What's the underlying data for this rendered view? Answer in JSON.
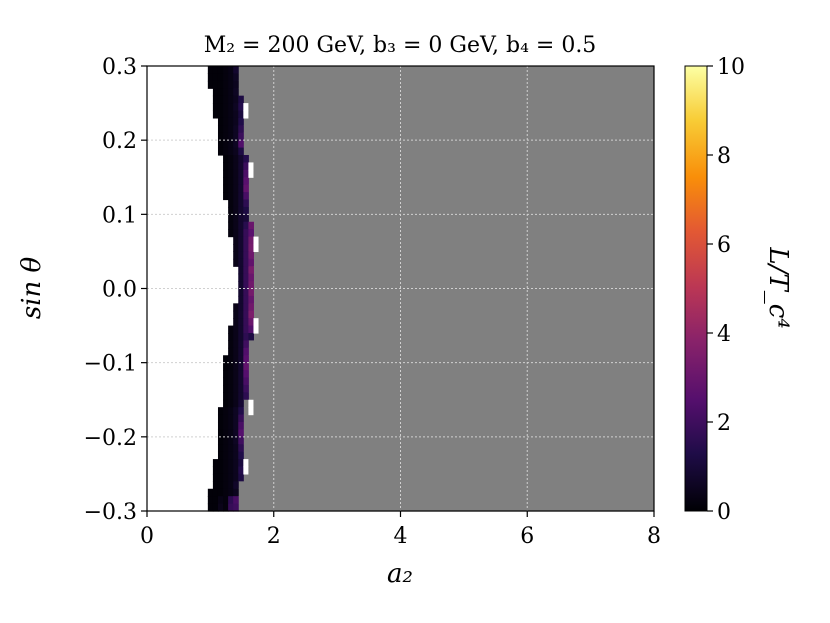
{
  "chart_data": {
    "type": "heatmap",
    "title": "M₂ = 200  GeV,  b₃ = 0  GeV,  b₄ = 0.5",
    "xlabel": "a₂",
    "ylabel": "sin θ",
    "colorbar_label": "L/T_c⁴",
    "xlim": [
      0,
      8
    ],
    "ylim": [
      -0.3,
      0.3
    ],
    "clim": [
      0,
      10
    ],
    "colormap": "inferno",
    "x_ticks": [
      {
        "value": 0,
        "label": "0"
      },
      {
        "value": 2,
        "label": "2"
      },
      {
        "value": 4,
        "label": "4"
      },
      {
        "value": 6,
        "label": "6"
      },
      {
        "value": 8,
        "label": "8"
      }
    ],
    "y_ticks": [
      {
        "value": -0.3,
        "label": "−0.3"
      },
      {
        "value": -0.2,
        "label": "−0.2"
      },
      {
        "value": -0.1,
        "label": "−0.1"
      },
      {
        "value": 0.0,
        "label": "0.0"
      },
      {
        "value": 0.1,
        "label": "0.1"
      },
      {
        "value": 0.2,
        "label": "0.2"
      },
      {
        "value": 0.3,
        "label": "0.3"
      }
    ],
    "colorbar_ticks": [
      {
        "value": 0,
        "label": "0"
      },
      {
        "value": 2,
        "label": "2"
      },
      {
        "value": 4,
        "label": "4"
      },
      {
        "value": 6,
        "label": "6"
      },
      {
        "value": 8,
        "label": "8"
      },
      {
        "value": 10,
        "label": "10"
      }
    ],
    "grid": true,
    "cell_size": {
      "dx": 0.08,
      "dy": 0.01
    },
    "background_region": {
      "x_from": 0,
      "x_to": 8,
      "color": "#ffffff"
    },
    "gray_region_color": "#808080",
    "rows": [
      {
        "y": 0.295,
        "x_start": 0.96,
        "x_gray": 1.44,
        "values": [
          0.1,
          0.1,
          0.1,
          0.2,
          0.3,
          0.8
        ]
      },
      {
        "y": 0.285,
        "x_start": 0.96,
        "x_gray": 1.44,
        "values": [
          0.1,
          0.1,
          0.1,
          0.2,
          0.3,
          0.6
        ]
      },
      {
        "y": 0.275,
        "x_start": 0.96,
        "x_gray": 1.44,
        "values": [
          0.1,
          0.1,
          0.1,
          0.2,
          0.3,
          0.5
        ]
      },
      {
        "y": 0.265,
        "x_start": 1.04,
        "x_gray": 1.44,
        "values": [
          0.1,
          0.1,
          0.2,
          0.3,
          0.6
        ]
      },
      {
        "y": 0.255,
        "x_start": 1.04,
        "x_gray": 1.52,
        "values": [
          0.1,
          0.1,
          0.2,
          0.3,
          0.5,
          1.2
        ]
      },
      {
        "y": 0.245,
        "x_start": 1.04,
        "x_gray": 1.52,
        "values": [
          0.1,
          0.1,
          0.2,
          0.3,
          0.6,
          1.4
        ]
      },
      {
        "y": 0.235,
        "x_start": 1.04,
        "x_gray": 1.52,
        "values": [
          0.1,
          0.1,
          0.2,
          0.3,
          0.5,
          1.1
        ]
      },
      {
        "y": 0.225,
        "x_start": 1.12,
        "x_gray": 1.52,
        "values": [
          0.1,
          0.2,
          0.3,
          0.5,
          1.3
        ]
      },
      {
        "y": 0.215,
        "x_start": 1.12,
        "x_gray": 1.52,
        "values": [
          0.1,
          0.2,
          0.3,
          0.6,
          1.6
        ]
      },
      {
        "y": 0.205,
        "x_start": 1.12,
        "x_gray": 1.52,
        "values": [
          0.1,
          0.2,
          0.3,
          0.6,
          1.9
        ]
      },
      {
        "y": 0.195,
        "x_start": 1.12,
        "x_gray": 1.52,
        "values": [
          0.1,
          0.2,
          0.3,
          0.6,
          2.4
        ]
      },
      {
        "y": 0.185,
        "x_start": 1.12,
        "x_gray": 1.52,
        "values": [
          0.1,
          0.2,
          0.3,
          0.5,
          1.2
        ]
      },
      {
        "y": 0.175,
        "x_start": 1.2,
        "x_gray": 1.6,
        "values": [
          0.1,
          0.2,
          0.4,
          0.8,
          1.4
        ]
      },
      {
        "y": 0.165,
        "x_start": 1.2,
        "x_gray": 1.6,
        "values": [
          0.1,
          0.2,
          0.4,
          0.8,
          1.9
        ]
      },
      {
        "y": 0.155,
        "x_start": 1.2,
        "x_gray": 1.6,
        "values": [
          0.1,
          0.2,
          0.4,
          0.8,
          2.3
        ]
      },
      {
        "y": 0.145,
        "x_start": 1.2,
        "x_gray": 1.6,
        "values": [
          0.1,
          0.2,
          0.4,
          0.8,
          2.6
        ]
      },
      {
        "y": 0.135,
        "x_start": 1.2,
        "x_gray": 1.6,
        "values": [
          0.1,
          0.2,
          0.4,
          0.8,
          2.8
        ]
      },
      {
        "y": 0.125,
        "x_start": 1.2,
        "x_gray": 1.6,
        "values": [
          0.1,
          0.2,
          0.4,
          0.8,
          2.2
        ]
      },
      {
        "y": 0.115,
        "x_start": 1.28,
        "x_gray": 1.6,
        "values": [
          0.2,
          0.4,
          0.8,
          1.6
        ]
      },
      {
        "y": 0.105,
        "x_start": 1.28,
        "x_gray": 1.6,
        "values": [
          0.2,
          0.4,
          0.8,
          1.2
        ]
      },
      {
        "y": 0.095,
        "x_start": 1.28,
        "x_gray": 1.6,
        "values": [
          0.2,
          0.4,
          0.8,
          1.0
        ]
      },
      {
        "y": 0.085,
        "x_start": 1.28,
        "x_gray": 1.68,
        "values": [
          0.2,
          0.4,
          0.8,
          1.5,
          3.0
        ]
      },
      {
        "y": 0.075,
        "x_start": 1.28,
        "x_gray": 1.68,
        "values": [
          0.2,
          0.4,
          0.8,
          1.8,
          2.6
        ]
      },
      {
        "y": 0.065,
        "x_start": 1.36,
        "x_gray": 1.68,
        "values": [
          0.4,
          0.8,
          1.8,
          3.2
        ]
      },
      {
        "y": 0.055,
        "x_start": 1.36,
        "x_gray": 1.68,
        "values": [
          0.4,
          0.8,
          1.8,
          3.3
        ]
      },
      {
        "y": 0.045,
        "x_start": 1.36,
        "x_gray": 1.68,
        "values": [
          0.4,
          0.8,
          1.8,
          3.1
        ]
      },
      {
        "y": 0.035,
        "x_start": 1.36,
        "x_gray": 1.68,
        "values": [
          0.4,
          0.8,
          1.8,
          2.8
        ]
      },
      {
        "y": 0.025,
        "x_start": 1.44,
        "x_gray": 1.68,
        "values": [
          0.8,
          1.8,
          3.4
        ]
      },
      {
        "y": 0.015,
        "x_start": 1.44,
        "x_gray": 1.68,
        "values": [
          0.8,
          1.8,
          3.0
        ]
      },
      {
        "y": 0.005,
        "x_start": 1.44,
        "x_gray": 1.68,
        "values": [
          0.8,
          1.8,
          3.2
        ]
      },
      {
        "y": -0.005,
        "x_start": 1.44,
        "x_gray": 1.68,
        "values": [
          0.8,
          1.8,
          3.3
        ]
      },
      {
        "y": -0.015,
        "x_start": 1.44,
        "x_gray": 1.68,
        "values": [
          0.8,
          1.8,
          2.9
        ]
      },
      {
        "y": -0.025,
        "x_start": 1.36,
        "x_gray": 1.68,
        "values": [
          0.4,
          0.8,
          1.8,
          3.2
        ]
      },
      {
        "y": -0.035,
        "x_start": 1.36,
        "x_gray": 1.68,
        "values": [
          0.4,
          0.8,
          1.8,
          3.5
        ]
      },
      {
        "y": -0.045,
        "x_start": 1.36,
        "x_gray": 1.68,
        "values": [
          0.4,
          0.8,
          1.8,
          3.0
        ]
      },
      {
        "y": -0.055,
        "x_start": 1.28,
        "x_gray": 1.68,
        "values": [
          0.2,
          0.4,
          0.8,
          1.8,
          2.4
        ]
      },
      {
        "y": -0.065,
        "x_start": 1.28,
        "x_gray": 1.68,
        "values": [
          0.2,
          0.4,
          0.8,
          1.6,
          1.2
        ]
      },
      {
        "y": -0.075,
        "x_start": 1.28,
        "x_gray": 1.6,
        "values": [
          0.2,
          0.4,
          0.8,
          2.0
        ]
      },
      {
        "y": -0.085,
        "x_start": 1.28,
        "x_gray": 1.6,
        "values": [
          0.2,
          0.4,
          0.8,
          2.4
        ]
      },
      {
        "y": -0.095,
        "x_start": 1.2,
        "x_gray": 1.6,
        "values": [
          0.1,
          0.2,
          0.4,
          0.8,
          2.6
        ]
      },
      {
        "y": -0.105,
        "x_start": 1.2,
        "x_gray": 1.6,
        "values": [
          0.1,
          0.2,
          0.4,
          0.8,
          2.8
        ]
      },
      {
        "y": -0.115,
        "x_start": 1.2,
        "x_gray": 1.6,
        "values": [
          0.1,
          0.2,
          0.4,
          0.8,
          2.5
        ]
      },
      {
        "y": -0.125,
        "x_start": 1.2,
        "x_gray": 1.6,
        "values": [
          0.1,
          0.2,
          0.4,
          0.8,
          2.2
        ]
      },
      {
        "y": -0.135,
        "x_start": 1.2,
        "x_gray": 1.6,
        "values": [
          0.1,
          0.2,
          0.4,
          0.8,
          1.9
        ]
      },
      {
        "y": -0.145,
        "x_start": 1.2,
        "x_gray": 1.6,
        "values": [
          0.1,
          0.2,
          0.4,
          0.8,
          1.6
        ]
      },
      {
        "y": -0.155,
        "x_start": 1.2,
        "x_gray": 1.52,
        "values": [
          0.1,
          0.2,
          0.4,
          0.9
        ]
      },
      {
        "y": -0.165,
        "x_start": 1.12,
        "x_gray": 1.52,
        "values": [
          0.1,
          0.2,
          0.3,
          0.6,
          1.3
        ]
      },
      {
        "y": -0.175,
        "x_start": 1.12,
        "x_gray": 1.52,
        "values": [
          0.1,
          0.2,
          0.3,
          0.6,
          1.8
        ]
      },
      {
        "y": -0.185,
        "x_start": 1.12,
        "x_gray": 1.52,
        "values": [
          0.1,
          0.2,
          0.3,
          0.6,
          2.2
        ]
      },
      {
        "y": -0.195,
        "x_start": 1.12,
        "x_gray": 1.52,
        "values": [
          0.1,
          0.2,
          0.3,
          0.6,
          2.5
        ]
      },
      {
        "y": -0.205,
        "x_start": 1.12,
        "x_gray": 1.52,
        "values": [
          0.1,
          0.2,
          0.3,
          0.6,
          2.0
        ]
      },
      {
        "y": -0.215,
        "x_start": 1.12,
        "x_gray": 1.52,
        "values": [
          0.1,
          0.2,
          0.3,
          0.5,
          1.6
        ]
      },
      {
        "y": -0.225,
        "x_start": 1.12,
        "x_gray": 1.52,
        "values": [
          0.1,
          0.2,
          0.3,
          0.5,
          1.3
        ]
      },
      {
        "y": -0.235,
        "x_start": 1.04,
        "x_gray": 1.52,
        "values": [
          0.1,
          0.1,
          0.2,
          0.3,
          0.5,
          1.1
        ]
      },
      {
        "y": -0.245,
        "x_start": 1.04,
        "x_gray": 1.52,
        "values": [
          0.1,
          0.1,
          0.2,
          0.3,
          0.5,
          1.4
        ]
      },
      {
        "y": -0.255,
        "x_start": 1.04,
        "x_gray": 1.52,
        "values": [
          0.1,
          0.1,
          0.2,
          0.3,
          0.5,
          1.2
        ]
      },
      {
        "y": -0.265,
        "x_start": 1.04,
        "x_gray": 1.44,
        "values": [
          0.1,
          0.1,
          0.2,
          0.3,
          0.7
        ]
      },
      {
        "y": -0.275,
        "x_start": 0.96,
        "x_gray": 1.44,
        "values": [
          0.1,
          0.1,
          0.1,
          0.2,
          0.3,
          0.5
        ]
      },
      {
        "y": -0.285,
        "x_start": 0.96,
        "x_gray": 1.44,
        "values": [
          0.1,
          0.1,
          0.3,
          0.2,
          1.6,
          2.2
        ]
      },
      {
        "y": -0.295,
        "x_start": 0.96,
        "x_gray": 1.44,
        "values": [
          0.1,
          0.1,
          0.4,
          0.2,
          1.8,
          2.0
        ]
      }
    ],
    "white_gaps": [
      {
        "x": 1.52,
        "y": 0.245
      },
      {
        "x": 1.52,
        "y": 0.235
      },
      {
        "x": 1.6,
        "y": 0.165
      },
      {
        "x": 1.6,
        "y": 0.155
      },
      {
        "x": 1.68,
        "y": 0.065
      },
      {
        "x": 1.68,
        "y": 0.055
      },
      {
        "x": 1.68,
        "y": -0.045
      },
      {
        "x": 1.68,
        "y": -0.055
      },
      {
        "x": 1.6,
        "y": -0.155
      },
      {
        "x": 1.6,
        "y": -0.165
      },
      {
        "x": 1.52,
        "y": -0.235
      },
      {
        "x": 1.52,
        "y": -0.245
      }
    ]
  }
}
